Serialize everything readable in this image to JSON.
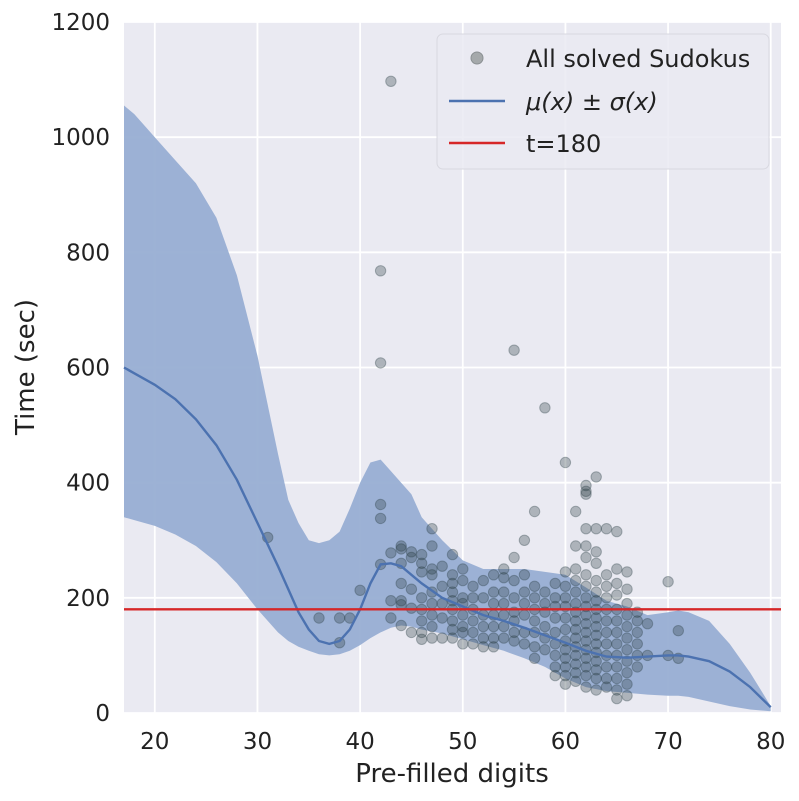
{
  "chart_data": {
    "type": "scatter",
    "xlabel": "Pre-filled digits",
    "ylabel": "Time (sec)",
    "xlim": [
      17,
      81
    ],
    "ylim": [
      0,
      1200
    ],
    "xticks": [
      20,
      30,
      40,
      50,
      60,
      70,
      80
    ],
    "yticks": [
      0,
      200,
      400,
      600,
      800,
      1000,
      1200
    ],
    "grid": true,
    "legend_position": "top-right",
    "colors": {
      "background": "#eaeaf2",
      "grid": "#ffffff",
      "band": "#98aed3",
      "mean_line": "#4c72b0",
      "threshold_line": "#d62728",
      "points_fill": "#2c3e45",
      "legend_marker": "#a5a9ab"
    },
    "legend": [
      {
        "label": "All solved Sudokus",
        "kind": "marker"
      },
      {
        "label": "μ(x) ± σ(x)",
        "kind": "line"
      },
      {
        "label": "t=180",
        "kind": "line"
      }
    ],
    "series": [
      {
        "name": "All solved Sudokus",
        "type": "scatter",
        "points": [
          [
            31,
            305
          ],
          [
            36,
            165
          ],
          [
            38,
            122
          ],
          [
            38,
            165
          ],
          [
            39,
            165
          ],
          [
            40,
            213
          ],
          [
            42,
            768
          ],
          [
            42,
            608
          ],
          [
            42,
            362
          ],
          [
            42,
            338
          ],
          [
            42,
            258
          ],
          [
            43,
            1097
          ],
          [
            43,
            278
          ],
          [
            43,
            195
          ],
          [
            43,
            165
          ],
          [
            44,
            290
          ],
          [
            44,
            285
          ],
          [
            44,
            260
          ],
          [
            44,
            225
          ],
          [
            44,
            195
          ],
          [
            44,
            188
          ],
          [
            44,
            152
          ],
          [
            45,
            280
          ],
          [
            45,
            270
          ],
          [
            45,
            215
          ],
          [
            45,
            182
          ],
          [
            45,
            140
          ],
          [
            46,
            275
          ],
          [
            46,
            260
          ],
          [
            46,
            245
          ],
          [
            46,
            200
          ],
          [
            46,
            180
          ],
          [
            46,
            160
          ],
          [
            46,
            140
          ],
          [
            46,
            128
          ],
          [
            47,
            320
          ],
          [
            47,
            290
          ],
          [
            47,
            250
          ],
          [
            47,
            240
          ],
          [
            47,
            210
          ],
          [
            47,
            190
          ],
          [
            47,
            170
          ],
          [
            47,
            150
          ],
          [
            47,
            130
          ],
          [
            48,
            255
          ],
          [
            48,
            220
          ],
          [
            48,
            190
          ],
          [
            48,
            165
          ],
          [
            48,
            130
          ],
          [
            49,
            275
          ],
          [
            49,
            240
          ],
          [
            49,
            225
          ],
          [
            49,
            210
          ],
          [
            49,
            195
          ],
          [
            49,
            180
          ],
          [
            49,
            160
          ],
          [
            49,
            145
          ],
          [
            49,
            130
          ],
          [
            50,
            250
          ],
          [
            50,
            230
          ],
          [
            50,
            200
          ],
          [
            50,
            190
          ],
          [
            50,
            170
          ],
          [
            50,
            150
          ],
          [
            50,
            140
          ],
          [
            50,
            120
          ],
          [
            51,
            220
          ],
          [
            51,
            200
          ],
          [
            51,
            180
          ],
          [
            51,
            160
          ],
          [
            51,
            140
          ],
          [
            51,
            120
          ],
          [
            52,
            230
          ],
          [
            52,
            200
          ],
          [
            52,
            170
          ],
          [
            52,
            150
          ],
          [
            52,
            130
          ],
          [
            52,
            115
          ],
          [
            53,
            240
          ],
          [
            53,
            210
          ],
          [
            53,
            190
          ],
          [
            53,
            170
          ],
          [
            53,
            150
          ],
          [
            53,
            130
          ],
          [
            53,
            115
          ],
          [
            54,
            250
          ],
          [
            54,
            235
          ],
          [
            54,
            210
          ],
          [
            54,
            190
          ],
          [
            54,
            170
          ],
          [
            54,
            150
          ],
          [
            54,
            130
          ],
          [
            55,
            630
          ],
          [
            55,
            270
          ],
          [
            55,
            230
          ],
          [
            55,
            200
          ],
          [
            55,
            175
          ],
          [
            55,
            160
          ],
          [
            55,
            140
          ],
          [
            55,
            125
          ],
          [
            56,
            300
          ],
          [
            56,
            240
          ],
          [
            56,
            210
          ],
          [
            56,
            190
          ],
          [
            56,
            170
          ],
          [
            56,
            140
          ],
          [
            56,
            120
          ],
          [
            57,
            350
          ],
          [
            57,
            220
          ],
          [
            57,
            200
          ],
          [
            57,
            180
          ],
          [
            57,
            160
          ],
          [
            57,
            140
          ],
          [
            57,
            115
          ],
          [
            57,
            95
          ],
          [
            58,
            530
          ],
          [
            58,
            210
          ],
          [
            58,
            190
          ],
          [
            58,
            175
          ],
          [
            58,
            150
          ],
          [
            58,
            130
          ],
          [
            58,
            110
          ],
          [
            59,
            225
          ],
          [
            59,
            200
          ],
          [
            59,
            185
          ],
          [
            59,
            165
          ],
          [
            59,
            140
          ],
          [
            59,
            120
          ],
          [
            59,
            100
          ],
          [
            59,
            80
          ],
          [
            59,
            65
          ],
          [
            60,
            435
          ],
          [
            60,
            245
          ],
          [
            60,
            220
          ],
          [
            60,
            200
          ],
          [
            60,
            185
          ],
          [
            60,
            165
          ],
          [
            60,
            145
          ],
          [
            60,
            125
          ],
          [
            60,
            110
          ],
          [
            60,
            95
          ],
          [
            60,
            80
          ],
          [
            60,
            65
          ],
          [
            60,
            50
          ],
          [
            61,
            350
          ],
          [
            61,
            290
          ],
          [
            61,
            250
          ],
          [
            61,
            230
          ],
          [
            61,
            210
          ],
          [
            61,
            190
          ],
          [
            61,
            175
          ],
          [
            61,
            160
          ],
          [
            61,
            145
          ],
          [
            61,
            130
          ],
          [
            61,
            115
          ],
          [
            61,
            100
          ],
          [
            61,
            85
          ],
          [
            61,
            70
          ],
          [
            61,
            55
          ],
          [
            62,
            395
          ],
          [
            62,
            385
          ],
          [
            62,
            380
          ],
          [
            62,
            320
          ],
          [
            62,
            290
          ],
          [
            62,
            270
          ],
          [
            62,
            240
          ],
          [
            62,
            220
          ],
          [
            62,
            200
          ],
          [
            62,
            185
          ],
          [
            62,
            170
          ],
          [
            62,
            155
          ],
          [
            62,
            140
          ],
          [
            62,
            125
          ],
          [
            62,
            110
          ],
          [
            62,
            95
          ],
          [
            62,
            80
          ],
          [
            62,
            65
          ],
          [
            62,
            45
          ],
          [
            63,
            410
          ],
          [
            63,
            320
          ],
          [
            63,
            280
          ],
          [
            63,
            260
          ],
          [
            63,
            230
          ],
          [
            63,
            210
          ],
          [
            63,
            195
          ],
          [
            63,
            180
          ],
          [
            63,
            165
          ],
          [
            63,
            150
          ],
          [
            63,
            135
          ],
          [
            63,
            120
          ],
          [
            63,
            105
          ],
          [
            63,
            90
          ],
          [
            63,
            75
          ],
          [
            63,
            60
          ],
          [
            63,
            40
          ],
          [
            64,
            320
          ],
          [
            64,
            240
          ],
          [
            64,
            220
          ],
          [
            64,
            200
          ],
          [
            64,
            180
          ],
          [
            64,
            160
          ],
          [
            64,
            140
          ],
          [
            64,
            120
          ],
          [
            64,
            100
          ],
          [
            64,
            80
          ],
          [
            64,
            60
          ],
          [
            64,
            45
          ],
          [
            65,
            315
          ],
          [
            65,
            250
          ],
          [
            65,
            225
          ],
          [
            65,
            205
          ],
          [
            65,
            180
          ],
          [
            65,
            160
          ],
          [
            65,
            140
          ],
          [
            65,
            120
          ],
          [
            65,
            100
          ],
          [
            65,
            80
          ],
          [
            65,
            60
          ],
          [
            65,
            40
          ],
          [
            65,
            25
          ],
          [
            66,
            245
          ],
          [
            66,
            215
          ],
          [
            66,
            190
          ],
          [
            66,
            170
          ],
          [
            66,
            150
          ],
          [
            66,
            130
          ],
          [
            66,
            110
          ],
          [
            66,
            90
          ],
          [
            66,
            70
          ],
          [
            66,
            50
          ],
          [
            66,
            30
          ],
          [
            67,
            175
          ],
          [
            67,
            160
          ],
          [
            67,
            140
          ],
          [
            67,
            120
          ],
          [
            67,
            100
          ],
          [
            67,
            80
          ],
          [
            68,
            155
          ],
          [
            68,
            100
          ],
          [
            70,
            228
          ],
          [
            70,
            100
          ],
          [
            71,
            143
          ],
          [
            71,
            95
          ]
        ]
      },
      {
        "name": "μ(x) ± σ(x)",
        "type": "line-band",
        "x": [
          17,
          18,
          20,
          22,
          24,
          26,
          28,
          30,
          32,
          33,
          34,
          35,
          36,
          37,
          38,
          39,
          40,
          41,
          42,
          43,
          44,
          45,
          46,
          48,
          50,
          52,
          54,
          56,
          58,
          60,
          62,
          64,
          66,
          68,
          70,
          71,
          72,
          74,
          76,
          78,
          80
        ],
        "mean": [
          600,
          590,
          570,
          545,
          510,
          465,
          405,
          330,
          255,
          215,
          175,
          145,
          125,
          120,
          125,
          145,
          180,
          225,
          258,
          260,
          255,
          240,
          225,
          200,
          185,
          170,
          160,
          148,
          135,
          122,
          108,
          98,
          96,
          98,
          100,
          100,
          98,
          90,
          72,
          45,
          10
        ],
        "lower": [
          340,
          335,
          325,
          310,
          290,
          262,
          225,
          180,
          140,
          125,
          115,
          108,
          102,
          100,
          102,
          108,
          118,
          130,
          140,
          148,
          152,
          150,
          145,
          138,
          128,
          118,
          108,
          95,
          80,
          60,
          45,
          38,
          35,
          32,
          30,
          30,
          28,
          20,
          12,
          6,
          3
        ],
        "upper": [
          1055,
          1040,
          1000,
          960,
          920,
          860,
          760,
          620,
          450,
          370,
          330,
          300,
          295,
          300,
          315,
          355,
          400,
          435,
          440,
          420,
          400,
          380,
          340,
          300,
          265,
          250,
          250,
          250,
          245,
          240,
          218,
          195,
          185,
          170,
          175,
          178,
          175,
          160,
          120,
          70,
          12
        ]
      },
      {
        "name": "t=180",
        "type": "hline",
        "y": 180
      }
    ]
  }
}
